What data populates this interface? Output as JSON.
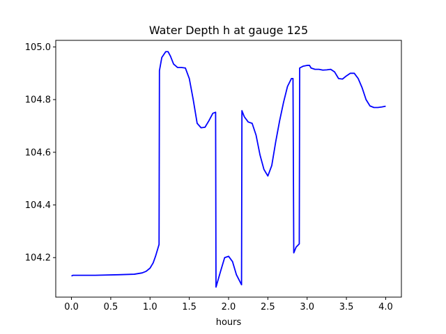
{
  "chart_data": {
    "type": "line",
    "title": "Water Depth h at gauge 125",
    "xlabel": "hours",
    "ylabel": "",
    "xlim": [
      -0.2,
      4.2
    ],
    "ylim": [
      104.05,
      105.025
    ],
    "xticks": [
      0.0,
      0.5,
      1.0,
      1.5,
      2.0,
      2.5,
      3.0,
      3.5,
      4.0
    ],
    "xtick_labels": [
      "0.0",
      "0.5",
      "1.0",
      "1.5",
      "2.0",
      "2.5",
      "3.0",
      "3.5",
      "4.0"
    ],
    "yticks": [
      104.2,
      104.4,
      104.6,
      104.8,
      105.0
    ],
    "ytick_labels": [
      "104.2",
      "104.4",
      "104.6",
      "104.8",
      "105.0"
    ],
    "grid": false,
    "series": [
      {
        "color": "#0000ff",
        "x": [
          0.0,
          0.02,
          0.3,
          0.6,
          0.8,
          0.9,
          0.95,
          1.0,
          1.04,
          1.07,
          1.1,
          1.115,
          1.12,
          1.15,
          1.2,
          1.23,
          1.26,
          1.3,
          1.35,
          1.4,
          1.45,
          1.5,
          1.55,
          1.6,
          1.65,
          1.7,
          1.75,
          1.8,
          1.835,
          1.84,
          1.9,
          1.95,
          2.0,
          2.05,
          2.1,
          2.165,
          2.17,
          2.2,
          2.25,
          2.3,
          2.35,
          2.4,
          2.45,
          2.5,
          2.55,
          2.6,
          2.65,
          2.7,
          2.75,
          2.8,
          2.82,
          2.83,
          2.86,
          2.9,
          2.905,
          2.95,
          3.0,
          3.03,
          3.05,
          3.1,
          3.15,
          3.2,
          3.25,
          3.3,
          3.35,
          3.4,
          3.45,
          3.5,
          3.55,
          3.6,
          3.65,
          3.7,
          3.75,
          3.8,
          3.85,
          3.9,
          3.95,
          4.0
        ],
        "y": [
          104.13,
          104.133,
          104.133,
          104.135,
          104.137,
          104.142,
          104.148,
          104.16,
          104.18,
          104.205,
          104.235,
          104.25,
          104.91,
          104.96,
          104.982,
          104.982,
          104.965,
          104.935,
          104.922,
          104.922,
          104.92,
          104.88,
          104.8,
          104.71,
          104.693,
          104.695,
          104.72,
          104.748,
          104.752,
          104.088,
          104.15,
          104.2,
          104.205,
          104.185,
          104.135,
          104.097,
          104.758,
          104.735,
          104.715,
          104.71,
          104.665,
          104.59,
          104.535,
          104.51,
          104.55,
          104.64,
          104.72,
          104.79,
          104.85,
          104.88,
          104.88,
          104.218,
          104.24,
          104.252,
          104.92,
          104.927,
          104.93,
          104.93,
          104.92,
          104.915,
          104.915,
          104.912,
          104.913,
          104.915,
          104.905,
          104.88,
          104.878,
          104.89,
          104.9,
          104.9,
          104.88,
          104.845,
          104.8,
          104.776,
          104.77,
          104.77,
          104.772,
          104.775
        ]
      }
    ]
  }
}
